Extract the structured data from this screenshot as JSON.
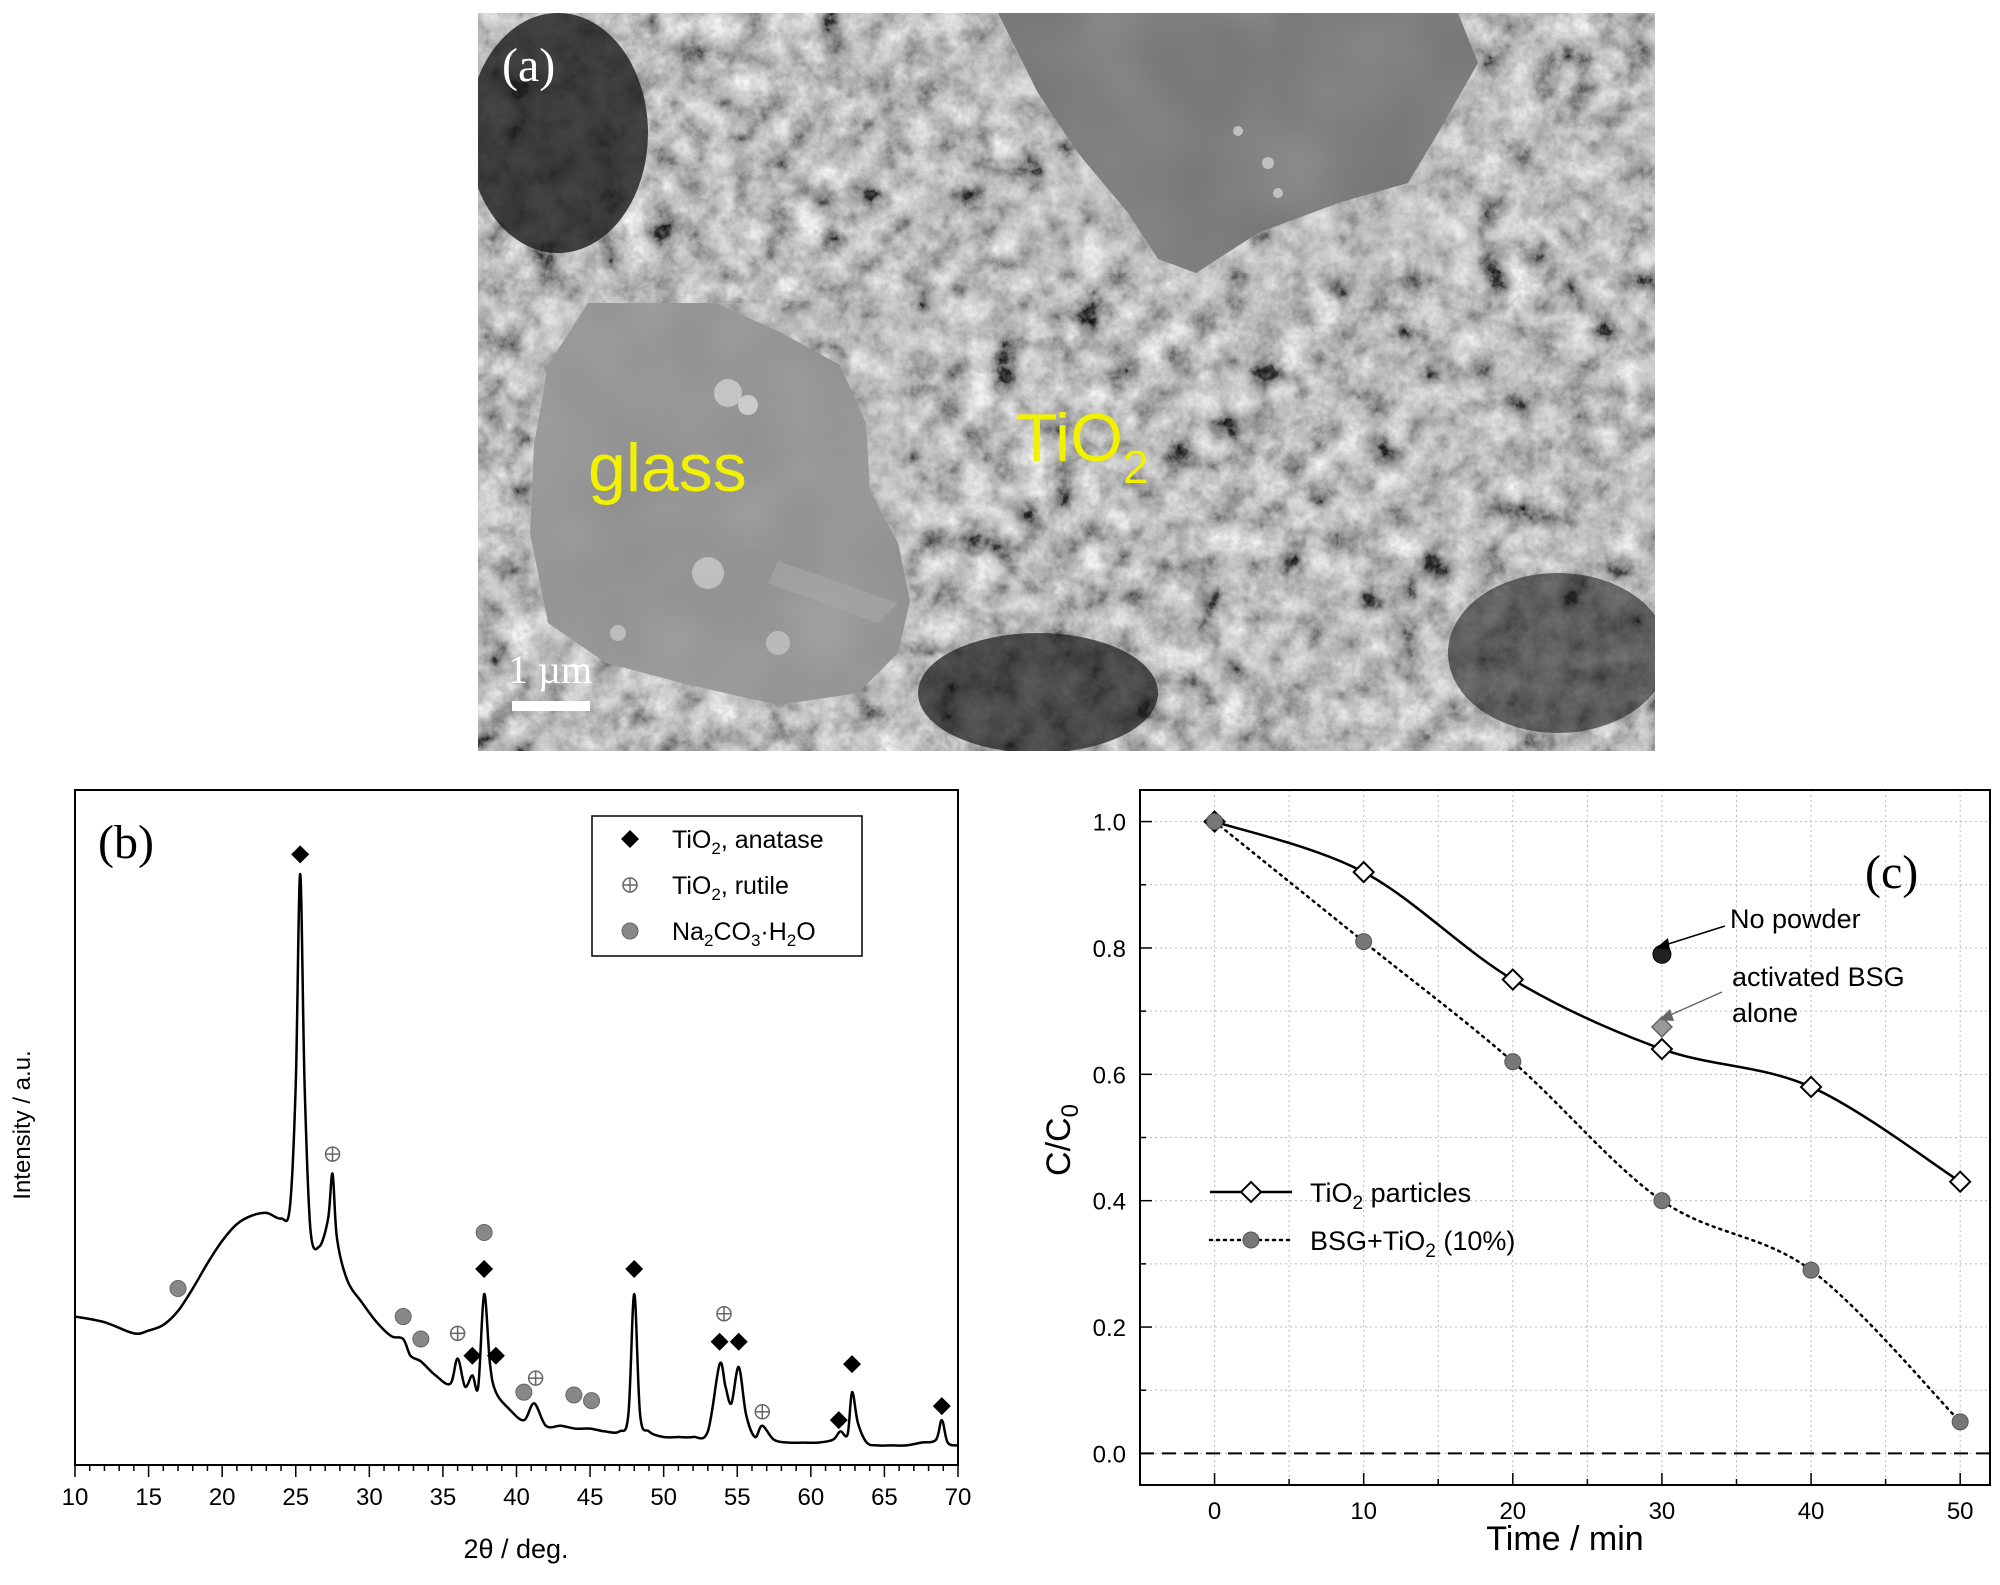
{
  "panel_a": {
    "label": "(a)",
    "glass_label": "glass",
    "tio2_label": "TiO",
    "tio2_sub": "2",
    "scale_bar": "1 µm"
  },
  "chart_data": [
    {
      "type": "line",
      "panel_label": "(b)",
      "xlabel": "2θ / deg.",
      "ylabel": "Intensity / a.u.",
      "xlim": [
        10,
        70
      ],
      "xticks": [
        10,
        15,
        20,
        25,
        30,
        35,
        40,
        45,
        50,
        55,
        60,
        65,
        70
      ],
      "legend": [
        {
          "marker": "diamond",
          "text": "TiO",
          "sub": "2",
          "rest": ", anatase"
        },
        {
          "marker": "circle-plus",
          "text": "TiO",
          "sub": "2",
          "rest": ", rutile"
        },
        {
          "marker": "gray-circle",
          "text": "Na",
          "sub": "2",
          "mid": "CO",
          "sub2": "3",
          "rest": "·H",
          "sub3": "2",
          "rest2": "O"
        }
      ],
      "legend_position": "top-right",
      "series": [
        {
          "x": [
            10,
            12,
            14,
            15,
            16,
            17,
            18,
            19,
            20,
            21,
            22,
            23,
            24,
            24.6,
            25,
            25.3,
            25.6,
            26,
            26.6,
            27.2,
            27.5,
            27.8,
            28.5,
            29.5,
            30.5,
            31.5,
            32.3,
            32.8,
            33.5,
            34.5,
            35.5,
            36,
            36.5,
            37,
            37.4,
            37.8,
            38.2,
            38.6,
            39.5,
            40.5,
            41.2,
            42,
            43,
            44,
            45,
            46,
            47,
            47.6,
            48,
            48.4,
            49,
            50,
            51,
            52,
            53,
            53.8,
            54.2,
            54.6,
            55.1,
            55.6,
            56.2,
            56.7,
            57.5,
            58.5,
            59.5,
            60.5,
            61.5,
            62,
            62.5,
            62.8,
            63.2,
            63.8,
            64.5,
            65.5,
            66.5,
            67.5,
            68.5,
            68.9,
            69.3,
            70
          ],
          "y": [
            0.47,
            0.45,
            0.41,
            0.42,
            0.44,
            0.49,
            0.57,
            0.66,
            0.74,
            0.8,
            0.83,
            0.84,
            0.82,
            0.86,
            1.3,
            2.05,
            1.3,
            0.78,
            0.72,
            0.82,
            0.98,
            0.75,
            0.6,
            0.52,
            0.45,
            0.4,
            0.39,
            0.33,
            0.31,
            0.26,
            0.23,
            0.32,
            0.22,
            0.26,
            0.22,
            0.55,
            0.3,
            0.2,
            0.14,
            0.1,
            0.16,
            0.08,
            0.08,
            0.07,
            0.07,
            0.06,
            0.06,
            0.12,
            0.55,
            0.12,
            0.06,
            0.04,
            0.04,
            0.04,
            0.06,
            0.3,
            0.22,
            0.16,
            0.29,
            0.12,
            0.04,
            0.08,
            0.03,
            0.02,
            0.02,
            0.02,
            0.03,
            0.06,
            0.05,
            0.2,
            0.09,
            0.02,
            0.01,
            0.01,
            0.01,
            0.02,
            0.03,
            0.1,
            0.02,
            0.01
          ]
        }
      ],
      "peak_markers": [
        {
          "x": 25.3,
          "y": 2.12,
          "type": "anatase"
        },
        {
          "x": 27.5,
          "y": 1.05,
          "type": "rutile"
        },
        {
          "x": 17,
          "y": 0.57,
          "type": "na2co3"
        },
        {
          "x": 32.3,
          "y": 0.47,
          "type": "na2co3"
        },
        {
          "x": 33.5,
          "y": 0.39,
          "type": "na2co3"
        },
        {
          "x": 36,
          "y": 0.41,
          "type": "rutile"
        },
        {
          "x": 37,
          "y": 0.33,
          "type": "anatase"
        },
        {
          "x": 37.8,
          "y": 0.77,
          "type": "na2co3"
        },
        {
          "x": 37.8,
          "y": 0.64,
          "type": "anatase"
        },
        {
          "x": 38.6,
          "y": 0.33,
          "type": "anatase"
        },
        {
          "x": 40.5,
          "y": 0.2,
          "type": "na2co3"
        },
        {
          "x": 41.3,
          "y": 0.25,
          "type": "rutile"
        },
        {
          "x": 43.9,
          "y": 0.19,
          "type": "na2co3"
        },
        {
          "x": 45.1,
          "y": 0.17,
          "type": "na2co3"
        },
        {
          "x": 48,
          "y": 0.64,
          "type": "anatase"
        },
        {
          "x": 53.8,
          "y": 0.38,
          "type": "anatase"
        },
        {
          "x": 54.1,
          "y": 0.48,
          "type": "rutile"
        },
        {
          "x": 55.1,
          "y": 0.38,
          "type": "anatase"
        },
        {
          "x": 56.7,
          "y": 0.13,
          "type": "rutile"
        },
        {
          "x": 61.9,
          "y": 0.1,
          "type": "anatase"
        },
        {
          "x": 62.8,
          "y": 0.3,
          "type": "anatase"
        },
        {
          "x": 68.9,
          "y": 0.15,
          "type": "anatase"
        }
      ],
      "ylim": [
        -0.06,
        2.35
      ],
      "grid": false
    },
    {
      "type": "line",
      "panel_label": "(c)",
      "xlabel": "Time / min",
      "ylabel": "C/C",
      "ylabel_sub": "0",
      "xlim": [
        -5,
        52
      ],
      "ylim": [
        -0.05,
        1.05
      ],
      "xticks": [
        0,
        10,
        20,
        30,
        40,
        50
      ],
      "yticks": [
        0.0,
        0.2,
        0.4,
        0.6,
        0.8,
        1.0
      ],
      "ytick_labels": [
        "0.0",
        "0.2",
        "0.4",
        "0.6",
        "0.8",
        "1.0"
      ],
      "grid": true,
      "series": [
        {
          "name": "TiO2 particles",
          "legend_text": "TiO",
          "legend_sub": "2",
          "legend_rest": " particles",
          "x": [
            0,
            10,
            20,
            30,
            40,
            50
          ],
          "y": [
            1.0,
            0.92,
            0.75,
            0.64,
            0.58,
            0.43
          ],
          "style": "solid",
          "marker": "open-diamond"
        },
        {
          "name": "BSG+TiO2 (10%)",
          "legend_text": "BSG+TiO",
          "legend_sub": "2",
          "legend_rest": " (10%)",
          "x": [
            0,
            10,
            20,
            30,
            40,
            50
          ],
          "y": [
            1.0,
            0.81,
            0.62,
            0.4,
            0.29,
            0.05
          ],
          "style": "dotted",
          "marker": "gray-circle"
        }
      ],
      "points": [
        {
          "x": 30,
          "y": 0.79,
          "marker": "dark-circle"
        },
        {
          "x": 30,
          "y": 0.675,
          "marker": "gray-diamond"
        }
      ],
      "annotations": [
        {
          "text": "No powder",
          "lines": [
            "No powder"
          ]
        },
        {
          "text": "activated BSG alone",
          "lines": [
            "activated BSG",
            "alone"
          ]
        }
      ],
      "zero_line": 0.0,
      "legend_position": "center-left"
    }
  ]
}
